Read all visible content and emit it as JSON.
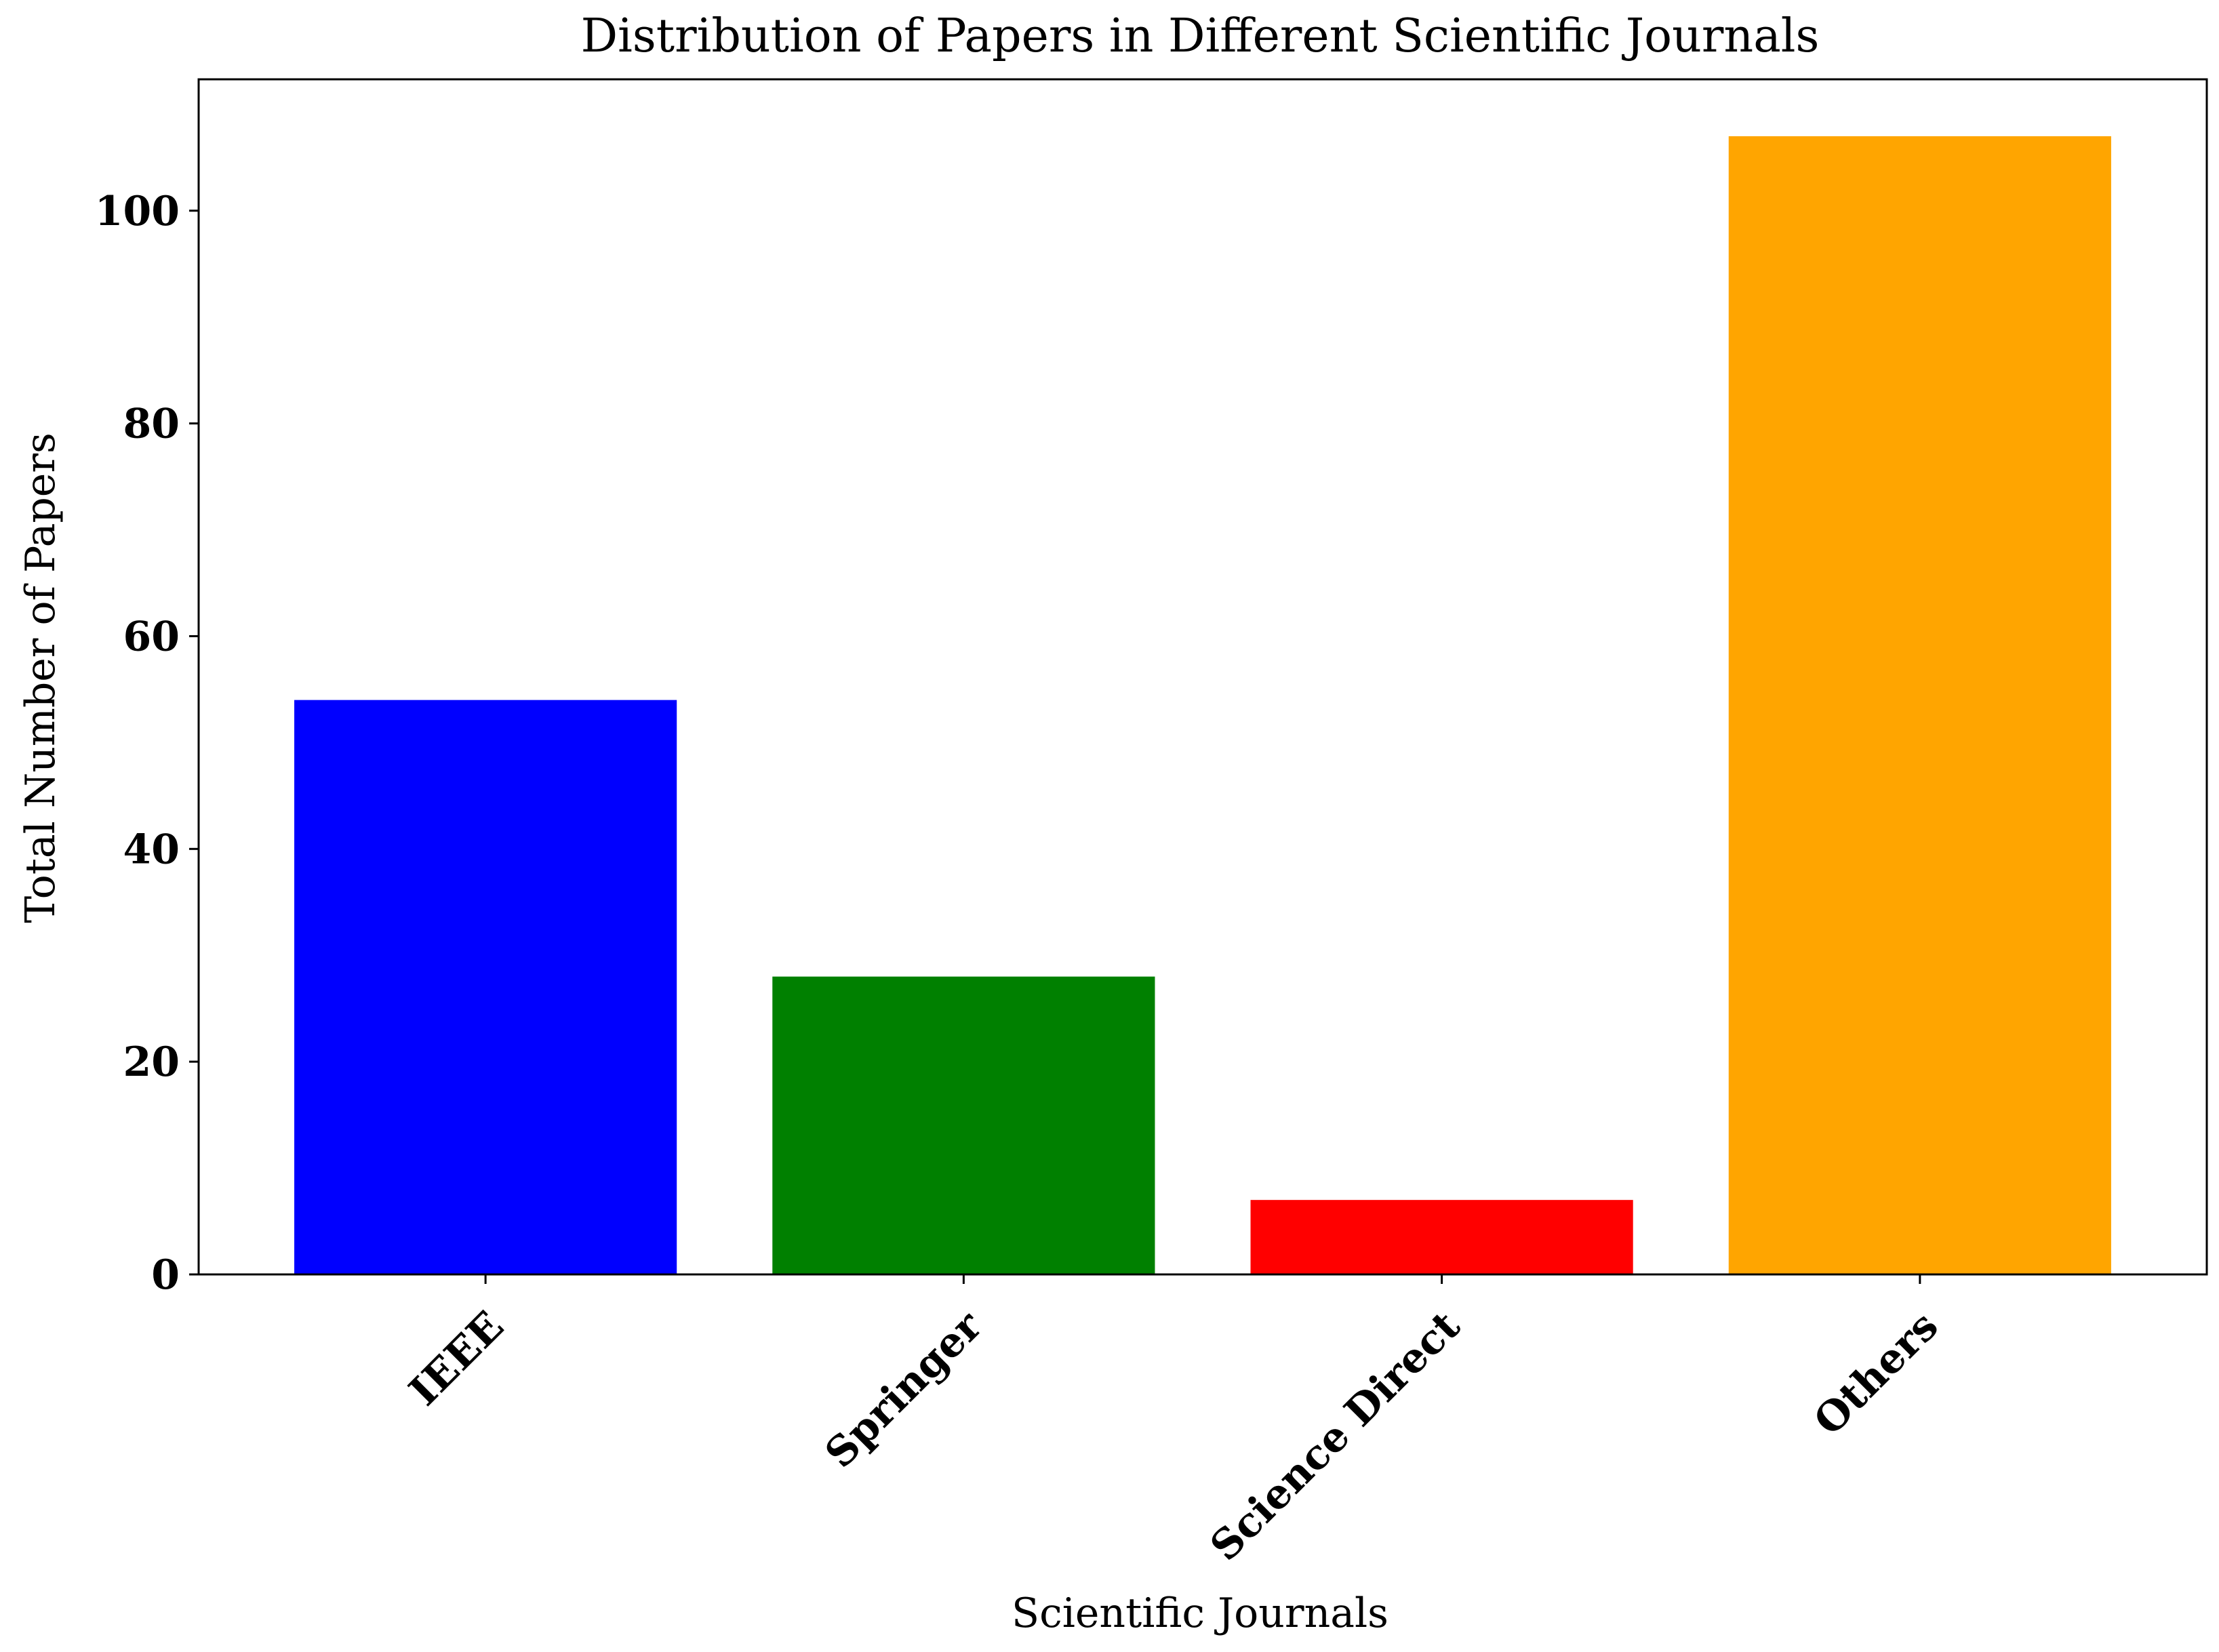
{
  "chart_data": {
    "type": "bar",
    "title": "Distribution of Papers in Different Scientific Journals",
    "xlabel": "Scientific Journals",
    "ylabel": "Total Number of Papers",
    "categories": [
      "IEEE",
      "Springer",
      "Science Direct",
      "Others"
    ],
    "values": [
      54,
      28,
      7,
      107
    ],
    "colors": [
      "#0000ff",
      "#008000",
      "#ff0000",
      "#ffa500"
    ],
    "ylim": [
      0,
      112.35
    ],
    "yticks": [
      0,
      20,
      40,
      60,
      80,
      100
    ],
    "ytick_labels": [
      "0",
      "20",
      "40",
      "60",
      "80",
      "100"
    ],
    "xtick_rotation": 45,
    "grid": false,
    "legend": "none"
  }
}
